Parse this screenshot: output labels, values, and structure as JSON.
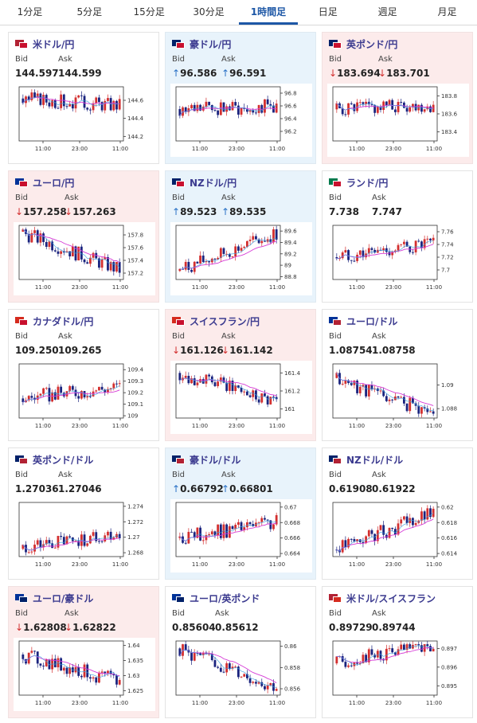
{
  "tabs": [
    {
      "label": "1分足",
      "active": false
    },
    {
      "label": "5分足",
      "active": false
    },
    {
      "label": "15分足",
      "active": false
    },
    {
      "label": "30分足",
      "active": false
    },
    {
      "label": "1時間足",
      "active": true
    },
    {
      "label": "日足",
      "active": false
    },
    {
      "label": "週足",
      "active": false
    },
    {
      "label": "月足",
      "active": false
    }
  ],
  "bid_label": "Bid",
  "ask_label": "Ask",
  "x_ticks": [
    "11:00",
    "23:00",
    "11:00"
  ],
  "colors": {
    "up_bg": "#e8f3fb",
    "down_bg": "#fcebeb",
    "bull": "#d32f2f",
    "bear": "#1a237e",
    "ma": "#d63bd6",
    "ma2": "#3aa0e0",
    "up_arrow": "#2a71c6",
    "down_arrow": "#d32f2f",
    "active_tab": "#1d57a6"
  },
  "cards": [
    {
      "pair": "米ドル/円",
      "flags": [
        "#b22234",
        "#c8102e"
      ],
      "bid": "144.597",
      "ask": "144.599",
      "dir": "none",
      "chart_data": {
        "type": "candlestick",
        "y_ticks": [
          "144.6",
          "144.4",
          "144.2"
        ],
        "ylim": [
          144.15,
          144.75
        ],
        "start": 144.62,
        "end": 144.55,
        "trend": 0.3
      }
    },
    {
      "pair": "豪ドル/円",
      "flags": [
        "#012169",
        "#c8102e"
      ],
      "bid": "96.586",
      "ask": "96.591",
      "dir": "up",
      "chart_data": {
        "type": "candlestick",
        "y_ticks": [
          "96.8",
          "96.6",
          "96.4",
          "96.2"
        ],
        "ylim": [
          96.05,
          96.9
        ],
        "start": 96.55,
        "end": 96.59,
        "trend": 1
      }
    },
    {
      "pair": "英ポンド/円",
      "flags": [
        "#012169",
        "#c8102e"
      ],
      "bid": "183.694",
      "ask": "183.701",
      "dir": "down",
      "chart_data": {
        "type": "candlestick",
        "y_ticks": [
          "183.8",
          "183.6",
          "183.4"
        ],
        "ylim": [
          183.3,
          183.9
        ],
        "start": 183.65,
        "end": 183.7,
        "trend": 1
      }
    },
    {
      "pair": "ユーロ/円",
      "flags": [
        "#003399",
        "#c8102e"
      ],
      "bid": "157.258",
      "ask": "157.263",
      "dir": "down",
      "chart_data": {
        "type": "candlestick",
        "y_ticks": [
          "157.8",
          "157.6",
          "157.4",
          "157.2"
        ],
        "ylim": [
          157.1,
          157.95
        ],
        "start": 157.85,
        "end": 157.25,
        "trend": -1
      }
    },
    {
      "pair": "NZドル/円",
      "flags": [
        "#012169",
        "#c8102e"
      ],
      "bid": "89.523",
      "ask": "89.535",
      "dir": "up",
      "chart_data": {
        "type": "candlestick",
        "y_ticks": [
          "89.6",
          "89.4",
          "89.2",
          "89",
          "88.8"
        ],
        "ylim": [
          88.75,
          89.7
        ],
        "start": 88.9,
        "end": 89.55,
        "trend": 1
      }
    },
    {
      "pair": "ランド/円",
      "flags": [
        "#007a4d",
        "#c8102e"
      ],
      "bid": "7.738",
      "ask": "7.747",
      "dir": "none",
      "chart_data": {
        "type": "candlestick",
        "y_ticks": [
          "7.76",
          "7.74",
          "7.72",
          "7.7"
        ],
        "ylim": [
          7.685,
          7.77
        ],
        "start": 7.72,
        "end": 7.74,
        "trend": 1
      }
    },
    {
      "pair": "カナダドル/円",
      "flags": [
        "#d52b1e",
        "#c8102e"
      ],
      "bid": "109.250",
      "ask": "109.265",
      "dir": "none",
      "chart_data": {
        "type": "candlestick",
        "y_ticks": [
          "109.4",
          "109.3",
          "109.2",
          "109.1",
          "109"
        ],
        "ylim": [
          108.98,
          109.45
        ],
        "start": 109.15,
        "end": 109.25,
        "trend": 0.5
      }
    },
    {
      "pair": "スイスフラン/円",
      "flags": [
        "#d52b1e",
        "#c8102e"
      ],
      "bid": "161.126",
      "ask": "161.142",
      "dir": "down",
      "chart_data": {
        "type": "candlestick",
        "y_ticks": [
          "161.4",
          "161.2",
          "161"
        ],
        "ylim": [
          160.9,
          161.5
        ],
        "start": 161.4,
        "end": 161.1,
        "trend": -1
      }
    },
    {
      "pair": "ユーロ/ドル",
      "flags": [
        "#003399",
        "#b22234"
      ],
      "bid": "1.08754",
      "ask": "1.08758",
      "dir": "none",
      "chart_data": {
        "type": "candlestick",
        "y_ticks": [
          "1.09",
          "1.088"
        ],
        "ylim": [
          1.0872,
          1.0918
        ],
        "start": 1.0906,
        "end": 1.0876,
        "trend": -1
      }
    },
    {
      "pair": "英ポンド/ドル",
      "flags": [
        "#012169",
        "#b22234"
      ],
      "bid": "1.27036",
      "ask": "1.27046",
      "dir": "none",
      "chart_data": {
        "type": "candlestick",
        "y_ticks": [
          "1.274",
          "1.272",
          "1.27",
          "1.268"
        ],
        "ylim": [
          1.2675,
          1.2745
        ],
        "start": 1.2685,
        "end": 1.2705,
        "trend": 1
      }
    },
    {
      "pair": "豪ドル/ドル",
      "flags": [
        "#012169",
        "#b22234"
      ],
      "bid": "0.66792",
      "ask": "0.66801",
      "dir": "up",
      "chart_data": {
        "type": "candlestick",
        "y_ticks": [
          "0.67",
          "0.668",
          "0.666",
          "0.664"
        ],
        "ylim": [
          0.6636,
          0.6706
        ],
        "start": 0.666,
        "end": 0.668,
        "trend": 1
      }
    },
    {
      "pair": "NZドル/ドル",
      "flags": [
        "#012169",
        "#b22234"
      ],
      "bid": "0.61908",
      "ask": "0.61922",
      "dir": "none",
      "chart_data": {
        "type": "candlestick",
        "y_ticks": [
          "0.62",
          "0.618",
          "0.616",
          "0.614"
        ],
        "ylim": [
          0.6136,
          0.6206
        ],
        "start": 0.6145,
        "end": 0.6192,
        "trend": 1
      }
    },
    {
      "pair": "ユーロ/豪ドル",
      "flags": [
        "#003399",
        "#012169"
      ],
      "bid": "1.62808",
      "ask": "1.62822",
      "dir": "down",
      "chart_data": {
        "type": "candlestick",
        "y_ticks": [
          "1.64",
          "1.635",
          "1.63",
          "1.625"
        ],
        "ylim": [
          1.6235,
          1.6415
        ],
        "start": 1.637,
        "end": 1.628,
        "trend": -1
      }
    },
    {
      "pair": "ユーロ/英ポンド",
      "flags": [
        "#003399",
        "#012169"
      ],
      "bid": "0.85604",
      "ask": "0.85612",
      "dir": "none",
      "chart_data": {
        "type": "candlestick",
        "y_ticks": [
          "0.86",
          "0.858",
          "0.856"
        ],
        "ylim": [
          0.8554,
          0.8605
        ],
        "start": 0.8598,
        "end": 0.8561,
        "trend": -1
      }
    },
    {
      "pair": "米ドル/スイスフラン",
      "flags": [
        "#b22234",
        "#d52b1e"
      ],
      "bid": "0.89729",
      "ask": "0.89744",
      "dir": "none",
      "chart_data": {
        "type": "candlestick",
        "y_ticks": [
          "0.897",
          "0.896",
          "0.895"
        ],
        "ylim": [
          0.8945,
          0.8974
        ],
        "start": 0.8962,
        "end": 0.8972,
        "trend": 0.5
      }
    }
  ]
}
